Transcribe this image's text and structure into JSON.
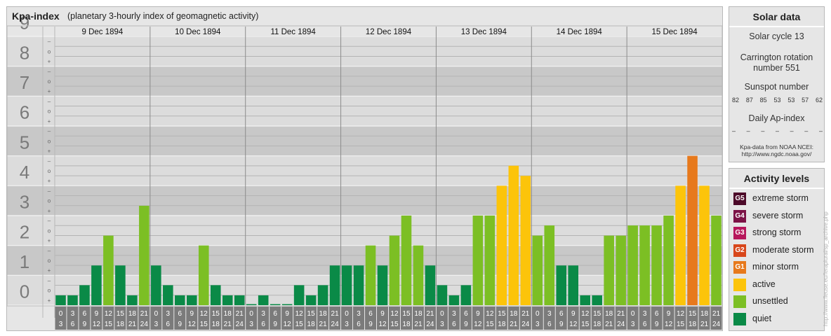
{
  "title": {
    "main": "Kpa-index",
    "sub": "(planetary 3-hourly index of geomagnetic activity)"
  },
  "chart_data": {
    "type": "bar",
    "title": "Kpa-index",
    "subtitle": "(planetary 3-hourly index of geomagnetic activity)",
    "ylim": [
      0,
      9
    ],
    "y_ticks": [
      "0",
      "1",
      "2",
      "3",
      "4",
      "5",
      "6",
      "7",
      "8",
      "9"
    ],
    "sub_ticks": [
      "+",
      "o",
      "–"
    ],
    "days": [
      "9 Dec 1894",
      "10 Dec 1894",
      "11 Dec 1894",
      "12 Dec 1894",
      "13 Dec 1894",
      "14 Dec 1894",
      "15 Dec 1894"
    ],
    "interval_start": [
      "0",
      "3",
      "6",
      "9",
      "12",
      "15",
      "18",
      "21"
    ],
    "interval_end": [
      "3",
      "6",
      "9",
      "12",
      "15",
      "18",
      "21",
      "24"
    ],
    "values": [
      [
        0.33,
        0.33,
        0.67,
        1.33,
        2.33,
        1.33,
        0.33,
        3.33
      ],
      [
        1.33,
        0.67,
        0.33,
        0.33,
        2.0,
        0.67,
        0.33,
        0.33
      ],
      [
        0.0,
        0.33,
        0.0,
        0.0,
        0.67,
        0.33,
        0.67,
        1.33
      ],
      [
        1.33,
        1.33,
        2.0,
        1.33,
        2.33,
        3.0,
        2.0,
        1.33
      ],
      [
        0.67,
        0.33,
        0.67,
        3.0,
        3.0,
        4.0,
        4.67,
        4.33
      ],
      [
        2.33,
        2.67,
        1.33,
        1.33,
        0.33,
        0.33,
        2.33,
        2.33
      ],
      [
        2.67,
        2.67,
        2.67,
        3.0,
        4.0,
        5.0,
        4.0,
        3.0
      ]
    ],
    "colors": {
      "quiet": "#0a8a47",
      "unsettled": "#7cbf24",
      "active": "#fcc40a",
      "G1": "#e7791c",
      "G2": "#d8461a",
      "G3": "#b7175c",
      "G4": "#7c1346",
      "G5": "#4d0a29"
    }
  },
  "solar": {
    "header": "Solar data",
    "cycle": "Solar cycle 13",
    "carrington_line1": "Carrington rotation",
    "carrington_line2": "number 551",
    "sunspot_label": "Sunspot number",
    "sunspots": [
      "82",
      "87",
      "85",
      "53",
      "53",
      "57",
      "62"
    ],
    "ap_label": "Daily Ap-index",
    "ap_values": [
      "–",
      "–",
      "–",
      "–",
      "–",
      "–",
      "–"
    ],
    "source_line1": "Kpa-data from NOAA NCEI:",
    "source_line2": "http://www.ngdc.noaa.gov/"
  },
  "activity": {
    "header": "Activity levels",
    "items": [
      {
        "badge": "G5",
        "label": "extreme storm",
        "color": "#4d0a29"
      },
      {
        "badge": "G4",
        "label": "severe storm",
        "color": "#7c1346"
      },
      {
        "badge": "G3",
        "label": "strong storm",
        "color": "#b7175c"
      },
      {
        "badge": "G2",
        "label": "moderate storm",
        "color": "#d8461a"
      },
      {
        "badge": "G1",
        "label": "minor storm",
        "color": "#e7791c"
      },
      {
        "badge": "",
        "label": "active",
        "color": "#fcc40a"
      },
      {
        "badge": "",
        "label": "unsettled",
        "color": "#7cbf24"
      },
      {
        "badge": "",
        "label": "quiet",
        "color": "#0a8a47"
      }
    ]
  },
  "watermark": "http://www.fleuse.eu/feraplural/sp_archive.php"
}
